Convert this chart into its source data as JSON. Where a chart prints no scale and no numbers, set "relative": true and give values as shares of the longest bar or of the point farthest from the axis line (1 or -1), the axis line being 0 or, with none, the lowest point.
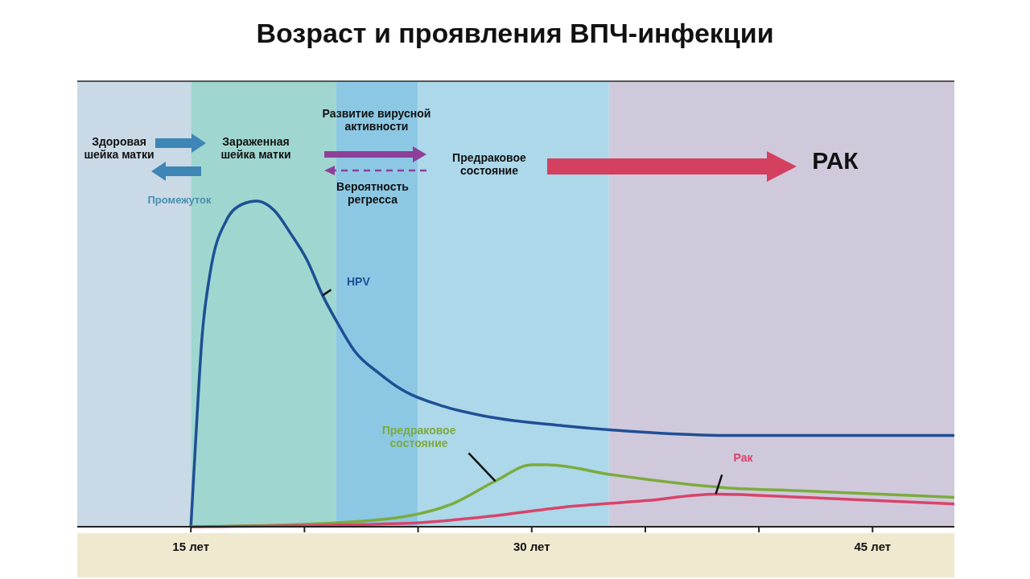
{
  "chart_data": {
    "type": "line",
    "title": "Возраст и проявления ВПЧ-инфекции",
    "relative": true,
    "legend": false,
    "grid": false,
    "marker": "none",
    "line_style": "solid",
    "xlim": [
      10,
      48.6
    ],
    "xticks": [
      {
        "value": 15,
        "label": "15 лет"
      },
      {
        "value": 20,
        "label": null
      },
      {
        "value": 25,
        "label": null
      },
      {
        "value": 30,
        "label": "30 лет"
      },
      {
        "value": 35,
        "label": null
      },
      {
        "value": 40,
        "label": null
      },
      {
        "value": 45,
        "label": "45 лет"
      }
    ],
    "bands": [
      {
        "axis": "x",
        "from": 10,
        "to": 15,
        "color": "#c9d9e6"
      },
      {
        "axis": "x",
        "from": 15,
        "to": 21.4,
        "color": "#9fd6cf"
      },
      {
        "axis": "x",
        "from": 21.4,
        "to": 25,
        "color": "#8cc8e4"
      },
      {
        "axis": "x",
        "from": 25,
        "to": 33.4,
        "color": "#acd8ea"
      },
      {
        "axis": "x",
        "from": 33.4,
        "to": 48.6,
        "color": "#d0c9dc"
      }
    ],
    "series": [
      {
        "name": "HPV",
        "color": "#1f4f94",
        "x": [
          15,
          15.2,
          15.5,
          15.85,
          16.56,
          17.27,
          17.9,
          18.68,
          19.39,
          20.1,
          20.8,
          21.5,
          22.2,
          23.3,
          24.3,
          26.1,
          27.9,
          31.4,
          35,
          38.5,
          42,
          48.6
        ],
        "values": [
          0,
          0.25,
          0.59,
          0.78,
          0.94,
          0.99,
          1,
          0.97,
          0.9,
          0.82,
          0.71,
          0.62,
          0.54,
          0.47,
          0.42,
          0.37,
          0.34,
          0.31,
          0.29,
          0.28,
          0.28,
          0.28
        ]
      },
      {
        "name": "Предраковое состояние",
        "color": "#7cab3c",
        "x": [
          15,
          20.8,
          24.3,
          26.5,
          28.4,
          30,
          30.7,
          33.5,
          38.5,
          42,
          48.6
        ],
        "values": [
          0,
          0.01,
          0.03,
          0.07,
          0.14,
          0.19,
          0.19,
          0.16,
          0.12,
          0.11,
          0.09
        ]
      },
      {
        "name": "Рак",
        "color": "#d9446a",
        "x": [
          15,
          24.3,
          27.9,
          31.4,
          35,
          38.1,
          42,
          48.6
        ],
        "values": [
          0,
          0.01,
          0.03,
          0.06,
          0.08,
          0.1,
          0.09,
          0.07
        ]
      }
    ],
    "annotations": [
      "Здоровая шейка матки",
      "Зараженная шейка матки",
      "Промежуток",
      "Развитие вирусной активности",
      "Вероятность регресса",
      "Предраковое состояние",
      "РАК"
    ]
  }
}
